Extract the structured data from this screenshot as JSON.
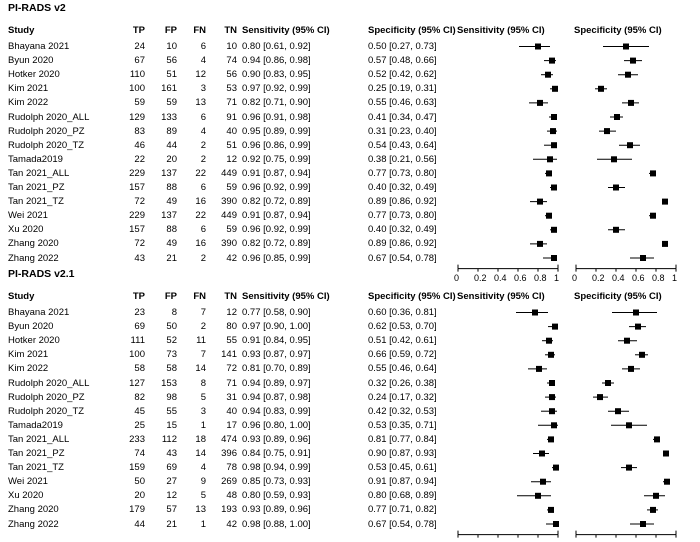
{
  "chart_data": {
    "type": "forest",
    "x_axis_ticks": [
      "0",
      "0.2",
      "0.4",
      "0.6",
      "0.8",
      "1"
    ],
    "xlim": [
      0,
      1
    ],
    "panels": [
      {
        "title": "PI-RADS v2",
        "headers": {
          "study": "Study",
          "tp": "TP",
          "fp": "FP",
          "fn": "FN",
          "tn": "TN",
          "sens": "Sensitivity (95% CI)",
          "spec": "Specificity (95% CI)",
          "plot_sens": "Sensitivity (95% CI)",
          "plot_spec": "Specificity (95% CI)"
        },
        "rows": [
          {
            "study": "Bhayana 2021",
            "tp": "24",
            "fp": "10",
            "fn": "6",
            "tn": "10",
            "sens_text": "0.80 [0.61, 0.92]",
            "spec_text": "0.50 [0.27, 0.73]",
            "sens": [
              0.8,
              0.61,
              0.92
            ],
            "spec": [
              0.5,
              0.27,
              0.73
            ]
          },
          {
            "study": "Byun 2020",
            "tp": "67",
            "fp": "56",
            "fn": "4",
            "tn": "74",
            "sens_text": "0.94 [0.86, 0.98]",
            "spec_text": "0.57 [0.48, 0.66]",
            "sens": [
              0.94,
              0.86,
              0.98
            ],
            "spec": [
              0.57,
              0.48,
              0.66
            ]
          },
          {
            "study": "Hotker 2020",
            "tp": "110",
            "fp": "51",
            "fn": "12",
            "tn": "56",
            "sens_text": "0.90 [0.83, 0.95]",
            "spec_text": "0.52 [0.42, 0.62]",
            "sens": [
              0.9,
              0.83,
              0.95
            ],
            "spec": [
              0.52,
              0.42,
              0.62
            ]
          },
          {
            "study": "Kim 2021",
            "tp": "100",
            "fp": "161",
            "fn": "3",
            "tn": "53",
            "sens_text": "0.97 [0.92, 0.99]",
            "spec_text": "0.25 [0.19, 0.31]",
            "sens": [
              0.97,
              0.92,
              0.99
            ],
            "spec": [
              0.25,
              0.19,
              0.31
            ]
          },
          {
            "study": "Kim 2022",
            "tp": "59",
            "fp": "59",
            "fn": "13",
            "tn": "71",
            "sens_text": "0.82 [0.71, 0.90]",
            "spec_text": "0.55 [0.46, 0.63]",
            "sens": [
              0.82,
              0.71,
              0.9
            ],
            "spec": [
              0.55,
              0.46,
              0.63
            ]
          },
          {
            "study": "Rudolph 2020_ALL",
            "tp": "129",
            "fp": "133",
            "fn": "6",
            "tn": "91",
            "sens_text": "0.96 [0.91, 0.98]",
            "spec_text": "0.41 [0.34, 0.47]",
            "sens": [
              0.96,
              0.91,
              0.98
            ],
            "spec": [
              0.41,
              0.34,
              0.47
            ]
          },
          {
            "study": "Rudolph 2020_PZ",
            "tp": "83",
            "fp": "89",
            "fn": "4",
            "tn": "40",
            "sens_text": "0.95 [0.89, 0.99]",
            "spec_text": "0.31 [0.23, 0.40]",
            "sens": [
              0.95,
              0.89,
              0.99
            ],
            "spec": [
              0.31,
              0.23,
              0.4
            ]
          },
          {
            "study": "Rudolph 2020_TZ",
            "tp": "46",
            "fp": "44",
            "fn": "2",
            "tn": "51",
            "sens_text": "0.96 [0.86, 0.99]",
            "spec_text": "0.54 [0.43, 0.64]",
            "sens": [
              0.96,
              0.86,
              0.99
            ],
            "spec": [
              0.54,
              0.43,
              0.64
            ]
          },
          {
            "study": "Tamada2019",
            "tp": "22",
            "fp": "20",
            "fn": "2",
            "tn": "12",
            "sens_text": "0.92 [0.75, 0.99]",
            "spec_text": "0.38 [0.21, 0.56]",
            "sens": [
              0.92,
              0.75,
              0.99
            ],
            "spec": [
              0.38,
              0.21,
              0.56
            ]
          },
          {
            "study": "Tan 2021_ALL",
            "tp": "229",
            "fp": "137",
            "fn": "22",
            "tn": "449",
            "sens_text": "0.91 [0.87, 0.94]",
            "spec_text": "0.77 [0.73, 0.80]",
            "sens": [
              0.91,
              0.87,
              0.94
            ],
            "spec": [
              0.77,
              0.73,
              0.8
            ]
          },
          {
            "study": "Tan 2021_PZ",
            "tp": "157",
            "fp": "88",
            "fn": "6",
            "tn": "59",
            "sens_text": "0.96 [0.92, 0.99]",
            "spec_text": "0.40 [0.32, 0.49]",
            "sens": [
              0.96,
              0.92,
              0.99
            ],
            "spec": [
              0.4,
              0.32,
              0.49
            ]
          },
          {
            "study": "Tan 2021_TZ",
            "tp": "72",
            "fp": "49",
            "fn": "16",
            "tn": "390",
            "sens_text": "0.82 [0.72, 0.89]",
            "spec_text": "0.89 [0.86, 0.92]",
            "sens": [
              0.82,
              0.72,
              0.89
            ],
            "spec": [
              0.89,
              0.86,
              0.92
            ]
          },
          {
            "study": "Wei 2021",
            "tp": "229",
            "fp": "137",
            "fn": "22",
            "tn": "449",
            "sens_text": "0.91 [0.87, 0.94]",
            "spec_text": "0.77 [0.73, 0.80]",
            "sens": [
              0.91,
              0.87,
              0.94
            ],
            "spec": [
              0.77,
              0.73,
              0.8
            ]
          },
          {
            "study": "Xu 2020",
            "tp": "157",
            "fp": "88",
            "fn": "6",
            "tn": "59",
            "sens_text": "0.96 [0.92, 0.99]",
            "spec_text": "0.40 [0.32, 0.49]",
            "sens": [
              0.96,
              0.92,
              0.99
            ],
            "spec": [
              0.4,
              0.32,
              0.49
            ]
          },
          {
            "study": "Zhang 2020",
            "tp": "72",
            "fp": "49",
            "fn": "16",
            "tn": "390",
            "sens_text": "0.82 [0.72, 0.89]",
            "spec_text": "0.89 [0.86, 0.92]",
            "sens": [
              0.82,
              0.72,
              0.89
            ],
            "spec": [
              0.89,
              0.86,
              0.92
            ]
          },
          {
            "study": "Zhang 2022",
            "tp": "43",
            "fp": "21",
            "fn": "2",
            "tn": "42",
            "sens_text": "0.96 [0.85, 0.99]",
            "spec_text": "0.67 [0.54, 0.78]",
            "sens": [
              0.96,
              0.85,
              0.99
            ],
            "spec": [
              0.67,
              0.54,
              0.78
            ]
          }
        ]
      },
      {
        "title": "PI-RADS v2.1",
        "headers": {
          "study": "Study",
          "tp": "TP",
          "fp": "FP",
          "fn": "FN",
          "tn": "TN",
          "sens": "Sensitivity (95% CI)",
          "spec": "Specificity (95% CI)",
          "plot_sens": "Sensitivity (95% CI)",
          "plot_spec": "Specificity (95% CI)"
        },
        "rows": [
          {
            "study": "Bhayana 2021",
            "tp": "23",
            "fp": "8",
            "fn": "7",
            "tn": "12",
            "sens_text": "0.77 [0.58, 0.90]",
            "spec_text": "0.60 [0.36, 0.81]",
            "sens": [
              0.77,
              0.58,
              0.9
            ],
            "spec": [
              0.6,
              0.36,
              0.81
            ]
          },
          {
            "study": "Byun 2020",
            "tp": "69",
            "fp": "50",
            "fn": "2",
            "tn": "80",
            "sens_text": "0.97 [0.90, 1.00]",
            "spec_text": "0.62 [0.53, 0.70]",
            "sens": [
              0.97,
              0.9,
              1.0
            ],
            "spec": [
              0.62,
              0.53,
              0.7
            ]
          },
          {
            "study": "Hotker 2020",
            "tp": "111",
            "fp": "52",
            "fn": "11",
            "tn": "55",
            "sens_text": "0.91 [0.84, 0.95]",
            "spec_text": "0.51 [0.42, 0.61]",
            "sens": [
              0.91,
              0.84,
              0.95
            ],
            "spec": [
              0.51,
              0.42,
              0.61
            ]
          },
          {
            "study": "Kim 2021",
            "tp": "100",
            "fp": "73",
            "fn": "7",
            "tn": "141",
            "sens_text": "0.93 [0.87, 0.97]",
            "spec_text": "0.66 [0.59, 0.72]",
            "sens": [
              0.93,
              0.87,
              0.97
            ],
            "spec": [
              0.66,
              0.59,
              0.72
            ]
          },
          {
            "study": "Kim 2022",
            "tp": "58",
            "fp": "58",
            "fn": "14",
            "tn": "72",
            "sens_text": "0.81 [0.70, 0.89]",
            "spec_text": "0.55 [0.46, 0.64]",
            "sens": [
              0.81,
              0.7,
              0.89
            ],
            "spec": [
              0.55,
              0.46,
              0.64
            ]
          },
          {
            "study": "Rudolph 2020_ALL",
            "tp": "127",
            "fp": "153",
            "fn": "8",
            "tn": "71",
            "sens_text": "0.94 [0.89, 0.97]",
            "spec_text": "0.32 [0.26, 0.38]",
            "sens": [
              0.94,
              0.89,
              0.97
            ],
            "spec": [
              0.32,
              0.26,
              0.38
            ]
          },
          {
            "study": "Rudolph 2020_PZ",
            "tp": "82",
            "fp": "98",
            "fn": "5",
            "tn": "31",
            "sens_text": "0.94 [0.87, 0.98]",
            "spec_text": "0.24 [0.17, 0.32]",
            "sens": [
              0.94,
              0.87,
              0.98
            ],
            "spec": [
              0.24,
              0.17,
              0.32
            ]
          },
          {
            "study": "Rudolph 2020_TZ",
            "tp": "45",
            "fp": "55",
            "fn": "3",
            "tn": "40",
            "sens_text": "0.94 [0.83, 0.99]",
            "spec_text": "0.42 [0.32, 0.53]",
            "sens": [
              0.94,
              0.83,
              0.99
            ],
            "spec": [
              0.42,
              0.32,
              0.53
            ]
          },
          {
            "study": "Tamada2019",
            "tp": "25",
            "fp": "15",
            "fn": "1",
            "tn": "17",
            "sens_text": "0.96 [0.80, 1.00]",
            "spec_text": "0.53 [0.35, 0.71]",
            "sens": [
              0.96,
              0.8,
              1.0
            ],
            "spec": [
              0.53,
              0.35,
              0.71
            ]
          },
          {
            "study": "Tan 2021_ALL",
            "tp": "233",
            "fp": "112",
            "fn": "18",
            "tn": "474",
            "sens_text": "0.93 [0.89, 0.96]",
            "spec_text": "0.81 [0.77, 0.84]",
            "sens": [
              0.93,
              0.89,
              0.96
            ],
            "spec": [
              0.81,
              0.77,
              0.84
            ]
          },
          {
            "study": "Tan 2021_PZ",
            "tp": "74",
            "fp": "43",
            "fn": "14",
            "tn": "396",
            "sens_text": "0.84 [0.75, 0.91]",
            "spec_text": "0.90 [0.87, 0.93]",
            "sens": [
              0.84,
              0.75,
              0.91
            ],
            "spec": [
              0.9,
              0.87,
              0.93
            ]
          },
          {
            "study": "Tan 2021_TZ",
            "tp": "159",
            "fp": "69",
            "fn": "4",
            "tn": "78",
            "sens_text": "0.98 [0.94, 0.99]",
            "spec_text": "0.53 [0.45, 0.61]",
            "sens": [
              0.98,
              0.94,
              0.99
            ],
            "spec": [
              0.53,
              0.45,
              0.61
            ]
          },
          {
            "study": "Wei 2021",
            "tp": "50",
            "fp": "27",
            "fn": "9",
            "tn": "269",
            "sens_text": "0.85 [0.73, 0.93]",
            "spec_text": "0.91 [0.87, 0.94]",
            "sens": [
              0.85,
              0.73,
              0.93
            ],
            "spec": [
              0.91,
              0.87,
              0.94
            ]
          },
          {
            "study": "Xu 2020",
            "tp": "20",
            "fp": "12",
            "fn": "5",
            "tn": "48",
            "sens_text": "0.80 [0.59, 0.93]",
            "spec_text": "0.80 [0.68, 0.89]",
            "sens": [
              0.8,
              0.59,
              0.93
            ],
            "spec": [
              0.8,
              0.68,
              0.89
            ]
          },
          {
            "study": "Zhang 2020",
            "tp": "179",
            "fp": "57",
            "fn": "13",
            "tn": "193",
            "sens_text": "0.93 [0.89, 0.96]",
            "spec_text": "0.77 [0.71, 0.82]",
            "sens": [
              0.93,
              0.89,
              0.96
            ],
            "spec": [
              0.77,
              0.71,
              0.82
            ]
          },
          {
            "study": "Zhang 2022",
            "tp": "44",
            "fp": "21",
            "fn": "1",
            "tn": "42",
            "sens_text": "0.98 [0.88, 1.00]",
            "spec_text": "0.67 [0.54, 0.78]",
            "sens": [
              0.98,
              0.88,
              1.0
            ],
            "spec": [
              0.67,
              0.54,
              0.78
            ]
          }
        ]
      }
    ]
  }
}
